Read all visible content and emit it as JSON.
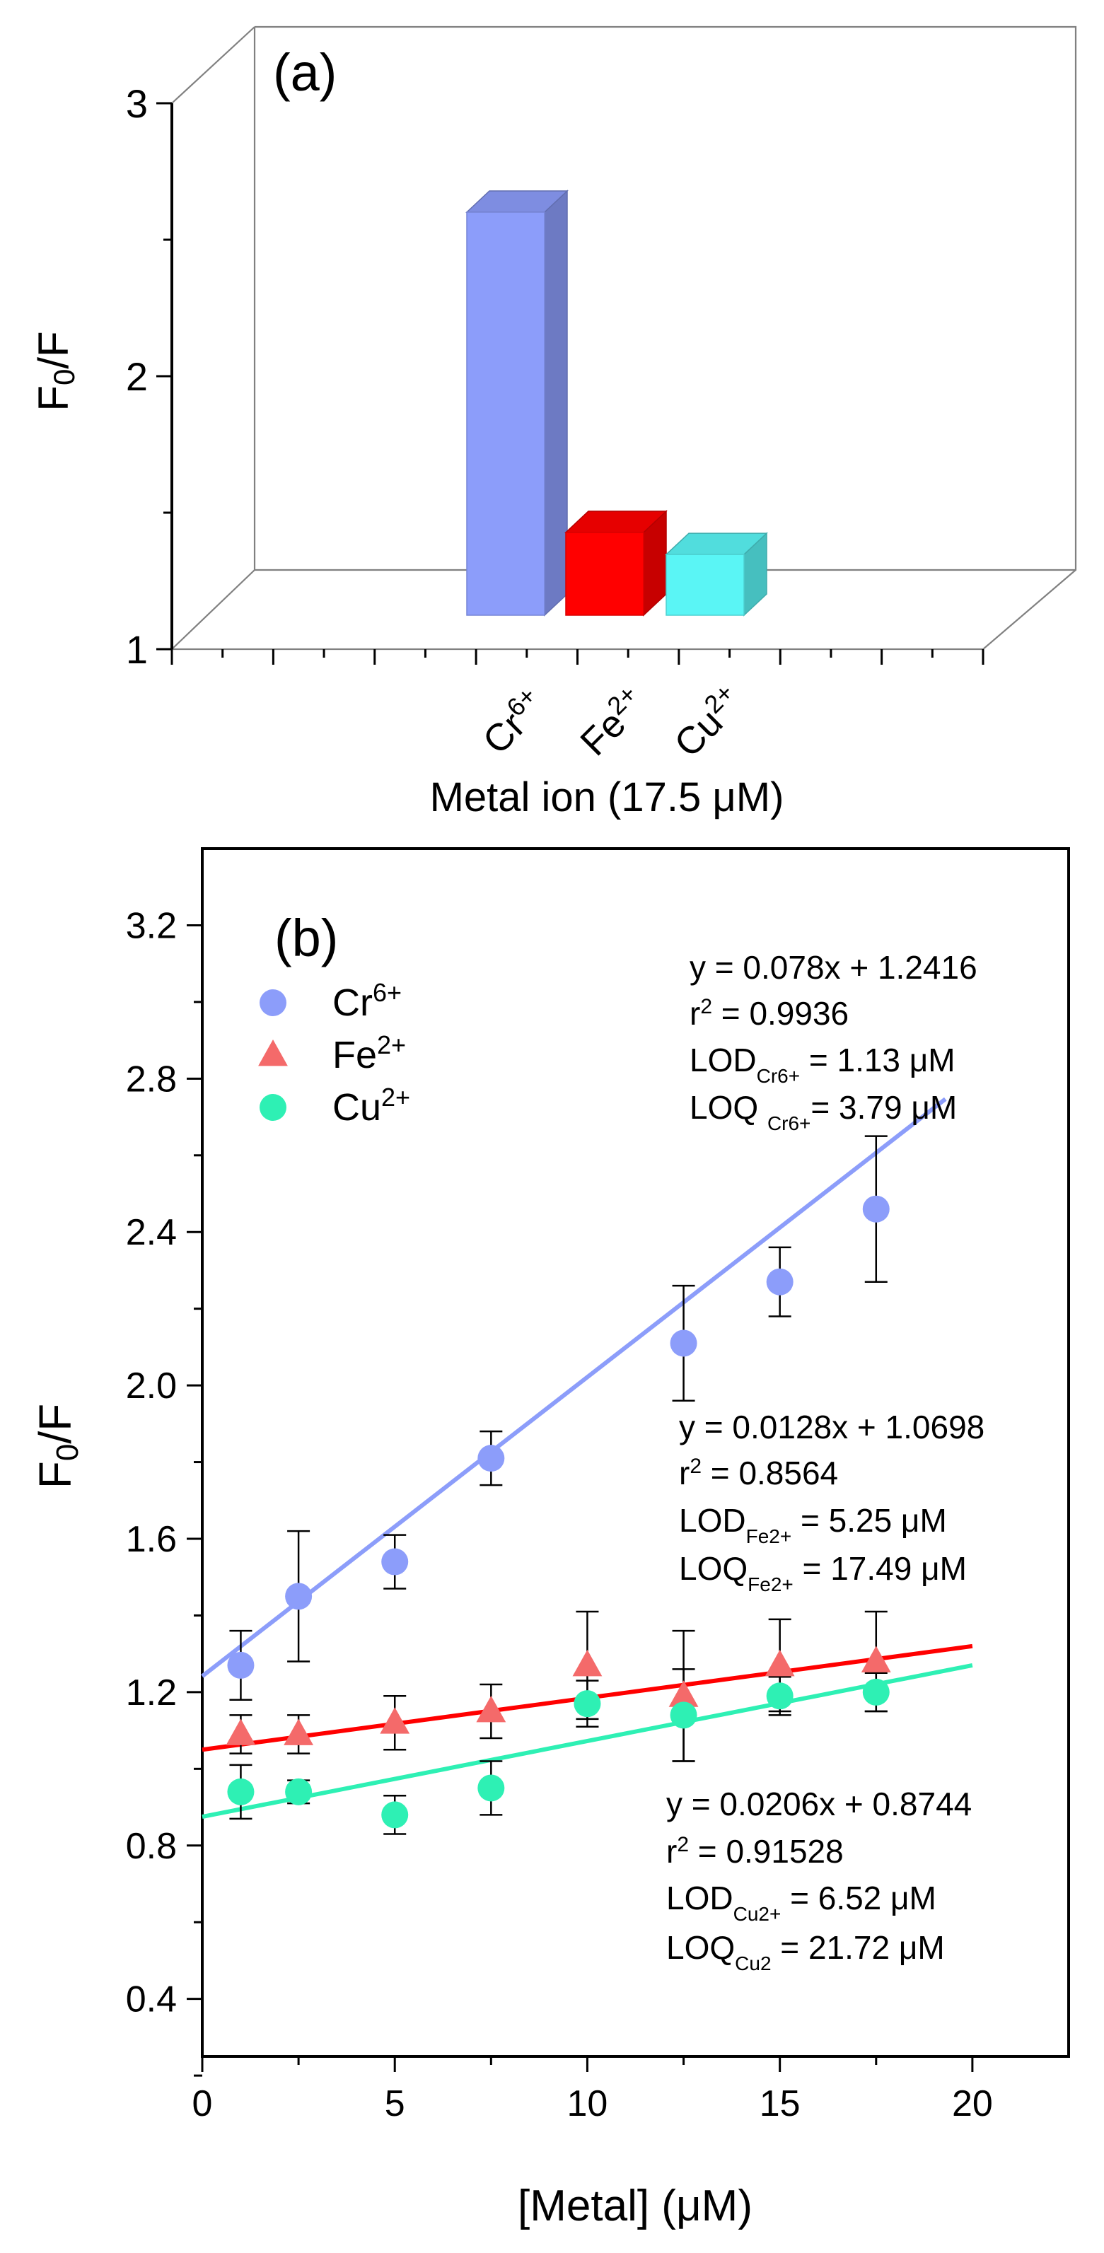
{
  "chart_data": [
    {
      "type": "bar",
      "panel": "(a)",
      "title": "",
      "ylabel": "F0/F",
      "ylabel_main": "F",
      "ylabel_sub": "0",
      "ylabel_tail": "/F",
      "xlabel": "Metal ion (17.5  μM)",
      "ylim": [
        1,
        3
      ],
      "yticks": [
        "1",
        "2",
        "3"
      ],
      "categories": [
        {
          "base": "Cr",
          "sup": "6+"
        },
        {
          "base": "Fe",
          "sup": "2+"
        },
        {
          "base": "Cu",
          "sup": "2+"
        }
      ],
      "values": [
        2.46,
        1.3,
        1.22
      ],
      "colors": [
        "#8c9dfa",
        "#ff0000",
        "#5af5f5"
      ]
    },
    {
      "type": "scatter",
      "panel": "(b)",
      "title": "",
      "ylabel": "F0/F",
      "ylabel_main": "F",
      "ylabel_sub": "0",
      "ylabel_tail": "/F",
      "xlabel": "[Metal] (μM)",
      "xlim": [
        0,
        22.5
      ],
      "ylim": [
        0.25,
        3.4
      ],
      "xticks": [
        "0",
        "5",
        "10",
        "15",
        "20"
      ],
      "yticks": [
        "0.4",
        "0.8",
        "1.2",
        "1.6",
        "2.0",
        "2.4",
        "2.8",
        "3.2"
      ],
      "legend": [
        {
          "base": "Cr",
          "sup": "6+",
          "marker": "circle",
          "color": "#8c9dfa"
        },
        {
          "base": "Fe",
          "sup": "2+",
          "marker": "triangle",
          "color": "#f46a6a"
        },
        {
          "base": "Cu",
          "sup": "2+",
          "marker": "circle",
          "color": "#2ef0b4"
        }
      ],
      "series": [
        {
          "name": "Cr6+",
          "color": "#8c9dfa",
          "line_color": "#8c9dfa",
          "marker": "circle",
          "x": [
            1,
            2.5,
            5,
            7.5,
            12.5,
            15,
            17.5
          ],
          "y": [
            1.27,
            1.45,
            1.54,
            1.81,
            2.11,
            2.27,
            2.46
          ],
          "err": [
            0.09,
            0.17,
            0.07,
            0.07,
            0.15,
            0.09,
            0.19
          ],
          "fit": {
            "slope": 0.078,
            "intercept": 1.2416,
            "x0": 0,
            "x1": 19.3
          }
        },
        {
          "name": "Fe2+",
          "color": "#f46a6a",
          "line_color": "#ff0000",
          "marker": "triangle",
          "x": [
            1,
            2.5,
            5,
            7.5,
            10,
            12.5,
            15,
            17.5
          ],
          "y": [
            1.09,
            1.09,
            1.12,
            1.15,
            1.27,
            1.19,
            1.27,
            1.28
          ],
          "err": [
            0.05,
            0.05,
            0.07,
            0.07,
            0.14,
            0.17,
            0.12,
            0.13
          ],
          "fit": {
            "slope": 0.0128,
            "intercept": 1.0698,
            "x0": 0,
            "x1": 20
          },
          "fit_draw": {
            "y0": 1.05,
            "y1": 1.32
          }
        },
        {
          "name": "Cu2+",
          "color": "#2ef0b4",
          "line_color": "#2ef0b4",
          "marker": "circle",
          "x": [
            1,
            2.5,
            5,
            7.5,
            10,
            12.5,
            15,
            17.5
          ],
          "y": [
            0.94,
            0.94,
            0.88,
            0.95,
            1.17,
            1.14,
            1.19,
            1.2
          ],
          "err": [
            0.07,
            0.03,
            0.05,
            0.07,
            0.06,
            0.12,
            0.05,
            0.05
          ],
          "fit": {
            "slope": 0.0206,
            "intercept": 0.8744,
            "x0": 0,
            "x1": 20
          },
          "fit_draw": {
            "y0": 0.875,
            "y1": 1.27
          }
        }
      ],
      "annotations": {
        "cr": {
          "eq": "y = 0.078x + 1.2416",
          "r2_label": "r",
          "r2_sup": "2",
          "r2_val": "  = 0.9936",
          "lod_label": "LOD",
          "lod_sub": "Cr6+",
          "lod_val": " = 1.13 μM",
          "loq_label": "LOQ ",
          "loq_sub": "Cr6+",
          "loq_val": "= 3.79 μM"
        },
        "fe": {
          "eq": "y = 0.0128x + 1.0698",
          "r2_label": "r",
          "r2_sup": "2",
          "r2_val": "  = 0.8564",
          "lod_label": "LOD",
          "lod_sub": "Fe2+",
          "lod_val": " = 5.25 μM",
          "loq_label": "LOQ",
          "loq_sub": "Fe2+",
          "loq_val": " = 17.49 μM"
        },
        "cu": {
          "eq": "y = 0.0206x + 0.8744",
          "r2_label": "r",
          "r2_sup": "2",
          "r2_val": "  = 0.91528",
          "lod_label": "LOD",
          "lod_sub": "Cu2+",
          "lod_val": " = 6.52 μM",
          "loq_label": "LOQ",
          "loq_sub": "Cu2",
          "loq_val": " = 21.72 μM"
        }
      }
    }
  ]
}
